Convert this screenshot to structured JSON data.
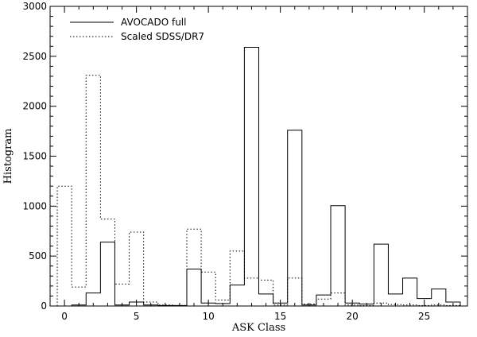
{
  "chart_data": {
    "type": "line",
    "step": true,
    "xlabel": "ASK Class",
    "ylabel": "Histogram",
    "xlim": [
      -1,
      28
    ],
    "ylim": [
      0,
      3000
    ],
    "x_ticks": [
      0,
      5,
      10,
      15,
      20,
      25
    ],
    "y_ticks": [
      0,
      500,
      1000,
      1500,
      2000,
      2500,
      3000
    ],
    "grid": false,
    "legend_position": "top-left",
    "x": [
      0,
      1,
      2,
      3,
      4,
      5,
      6,
      7,
      8,
      9,
      10,
      11,
      12,
      13,
      14,
      15,
      16,
      17,
      18,
      19,
      20,
      21,
      22,
      23,
      24,
      25,
      26,
      27
    ],
    "series": [
      {
        "name": "AVOCADO full",
        "style": "solid",
        "values": [
          0,
          10,
          130,
          640,
          10,
          40,
          10,
          5,
          5,
          370,
          30,
          25,
          210,
          2590,
          120,
          30,
          1760,
          10,
          110,
          1005,
          30,
          20,
          620,
          120,
          280,
          75,
          170,
          40
        ]
      },
      {
        "name": "Scaled SDSS/DR7",
        "style": "dotted",
        "values": [
          1200,
          190,
          2310,
          870,
          220,
          740,
          40,
          10,
          5,
          770,
          340,
          60,
          550,
          280,
          260,
          10,
          280,
          20,
          70,
          130,
          10,
          5,
          30,
          15,
          10,
          5,
          10,
          5
        ]
      }
    ]
  }
}
